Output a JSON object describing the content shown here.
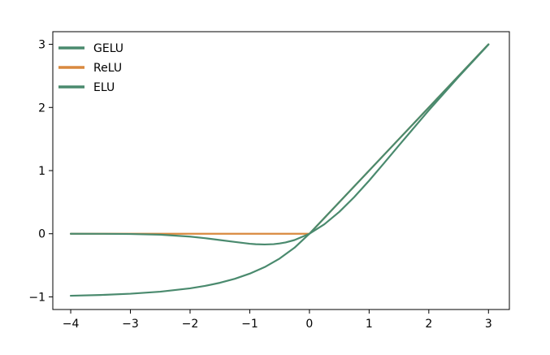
{
  "chart_data": {
    "type": "line",
    "title": "",
    "xlabel": "",
    "ylabel": "",
    "xlim": [
      -4.3,
      3.35
    ],
    "ylim": [
      -1.2,
      3.2
    ],
    "grid": false,
    "legend_position": "upper-left",
    "x_ticks": [
      {
        "value": -4,
        "label": "−4"
      },
      {
        "value": -3,
        "label": "−3"
      },
      {
        "value": -2,
        "label": "−2"
      },
      {
        "value": -1,
        "label": "−1"
      },
      {
        "value": 0,
        "label": "0"
      },
      {
        "value": 1,
        "label": "1"
      },
      {
        "value": 2,
        "label": "2"
      },
      {
        "value": 3,
        "label": "3"
      }
    ],
    "y_ticks": [
      {
        "value": -1,
        "label": "−1"
      },
      {
        "value": 0,
        "label": "0"
      },
      {
        "value": 1,
        "label": "1"
      },
      {
        "value": 2,
        "label": "2"
      },
      {
        "value": 3,
        "label": "3"
      }
    ],
    "series": [
      {
        "name": "GELU",
        "color": "#4a8a6e",
        "x": [
          -4,
          -3.5,
          -3,
          -2.5,
          -2,
          -1.75,
          -1.5,
          -1.25,
          -1,
          -0.9,
          -0.75,
          -0.6,
          -0.5,
          -0.4,
          -0.25,
          0,
          0.25,
          0.5,
          0.75,
          1,
          1.25,
          1.5,
          2,
          2.5,
          3
        ],
        "y": [
          0.0,
          -0.001,
          -0.004,
          -0.015,
          -0.045,
          -0.07,
          -0.1,
          -0.13,
          -0.159,
          -0.166,
          -0.17,
          -0.165,
          -0.154,
          -0.138,
          -0.1,
          0.0,
          0.15,
          0.346,
          0.58,
          0.841,
          1.118,
          1.4,
          1.955,
          2.485,
          2.996
        ]
      },
      {
        "name": "ReLU",
        "color": "#d9893f",
        "x": [
          -4,
          0,
          3
        ],
        "y": [
          0,
          0,
          3
        ]
      },
      {
        "name": "ELU",
        "color": "#4a8a6e",
        "x": [
          -4,
          -3.5,
          -3,
          -2.5,
          -2,
          -1.75,
          -1.5,
          -1.25,
          -1,
          -0.75,
          -0.5,
          -0.25,
          0,
          1,
          2,
          3
        ],
        "y": [
          -0.982,
          -0.97,
          -0.95,
          -0.918,
          -0.865,
          -0.826,
          -0.777,
          -0.713,
          -0.632,
          -0.528,
          -0.393,
          -0.221,
          0,
          1,
          2,
          3
        ]
      }
    ]
  }
}
